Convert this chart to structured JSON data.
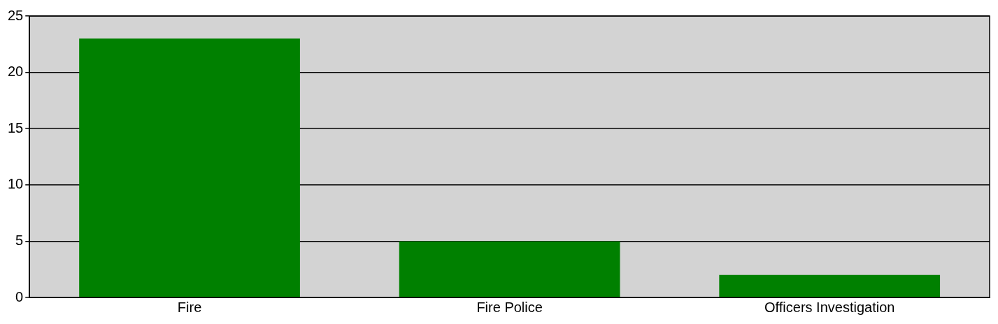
{
  "chart_data": {
    "type": "bar",
    "categories": [
      "Fire",
      "Fire Police",
      "Officers Investigation"
    ],
    "values": [
      23,
      5,
      2
    ],
    "color": "#008000",
    "ylim": [
      0,
      25
    ],
    "yticks": [
      0,
      5,
      10,
      15,
      20,
      25
    ],
    "grid": "y",
    "legend": false
  }
}
